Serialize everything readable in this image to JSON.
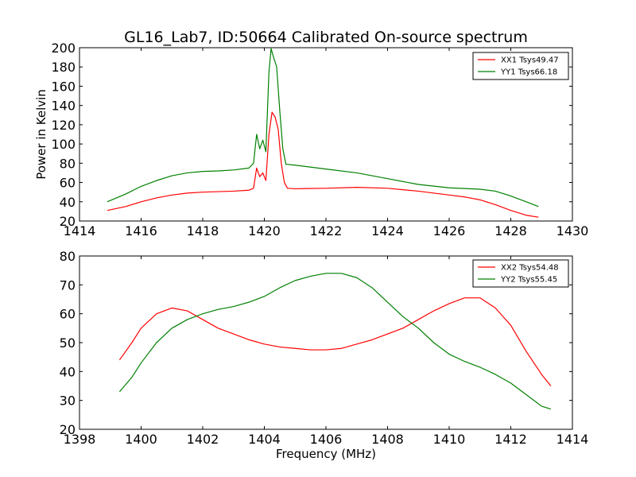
{
  "chart_data": [
    {
      "type": "line",
      "title": "GL16_Lab7, ID:50664 Calibrated On-source spectrum",
      "xlabel": "",
      "ylabel": "Power in Kelvin",
      "xlim": [
        1414,
        1430
      ],
      "ylim": [
        20,
        200
      ],
      "x_ticks": [
        1414,
        1416,
        1418,
        1420,
        1422,
        1424,
        1426,
        1428,
        1430
      ],
      "y_ticks": [
        20,
        40,
        60,
        80,
        100,
        120,
        140,
        160,
        180,
        200
      ],
      "legend_position": "top-right",
      "grid": false,
      "series": [
        {
          "name": "XX1 Tsys49.47",
          "color": "#ff0000",
          "points": [
            [
              1414.9,
              31
            ],
            [
              1415.5,
              35
            ],
            [
              1416,
              40
            ],
            [
              1416.5,
              44
            ],
            [
              1417,
              47
            ],
            [
              1417.5,
              49
            ],
            [
              1418,
              50
            ],
            [
              1418.5,
              50.5
            ],
            [
              1419,
              51
            ],
            [
              1419.5,
              52
            ],
            [
              1419.65,
              54
            ],
            [
              1419.75,
              75
            ],
            [
              1419.85,
              66
            ],
            [
              1419.95,
              70
            ],
            [
              1420.05,
              62
            ],
            [
              1420.15,
              110
            ],
            [
              1420.25,
              133
            ],
            [
              1420.35,
              128
            ],
            [
              1420.45,
              115
            ],
            [
              1420.55,
              80
            ],
            [
              1420.65,
              60
            ],
            [
              1420.75,
              54
            ],
            [
              1421,
              53.5
            ],
            [
              1422,
              54
            ],
            [
              1423,
              55
            ],
            [
              1424,
              54
            ],
            [
              1425,
              51
            ],
            [
              1426,
              47
            ],
            [
              1426.5,
              45
            ],
            [
              1427,
              42
            ],
            [
              1427.5,
              37
            ],
            [
              1428,
              31
            ],
            [
              1428.5,
              26
            ],
            [
              1428.9,
              24
            ]
          ]
        },
        {
          "name": "YY1 Tsys66.18",
          "color": "#008000",
          "points": [
            [
              1414.9,
              40
            ],
            [
              1415.5,
              48
            ],
            [
              1416,
              56
            ],
            [
              1416.5,
              62
            ],
            [
              1417,
              67
            ],
            [
              1417.5,
              70
            ],
            [
              1418,
              71.5
            ],
            [
              1418.5,
              72
            ],
            [
              1419,
              73
            ],
            [
              1419.5,
              75
            ],
            [
              1419.65,
              80
            ],
            [
              1419.75,
              110
            ],
            [
              1419.85,
              95
            ],
            [
              1419.95,
              104
            ],
            [
              1420.05,
              92
            ],
            [
              1420.15,
              175
            ],
            [
              1420.22,
              199
            ],
            [
              1420.3,
              190
            ],
            [
              1420.4,
              180
            ],
            [
              1420.5,
              135
            ],
            [
              1420.6,
              95
            ],
            [
              1420.7,
              79
            ],
            [
              1421,
              78
            ],
            [
              1422,
              74
            ],
            [
              1423,
              70
            ],
            [
              1424,
              64
            ],
            [
              1425,
              58
            ],
            [
              1426,
              54.5
            ],
            [
              1427,
              53
            ],
            [
              1427.5,
              51
            ],
            [
              1428,
              46
            ],
            [
              1428.5,
              40
            ],
            [
              1428.9,
              35
            ]
          ]
        }
      ]
    },
    {
      "type": "line",
      "title": "",
      "xlabel": "Frequency (MHz)",
      "ylabel": "",
      "xlim": [
        1398,
        1414
      ],
      "ylim": [
        20,
        80
      ],
      "x_ticks": [
        1398,
        1400,
        1402,
        1404,
        1406,
        1408,
        1410,
        1412,
        1414
      ],
      "y_ticks": [
        20,
        30,
        40,
        50,
        60,
        70,
        80
      ],
      "legend_position": "top-right",
      "grid": false,
      "series": [
        {
          "name": "XX2 Tsys54.48",
          "color": "#ff0000",
          "points": [
            [
              1399.3,
              44
            ],
            [
              1399.7,
              50
            ],
            [
              1400,
              55
            ],
            [
              1400.5,
              60
            ],
            [
              1401,
              62
            ],
            [
              1401.5,
              61
            ],
            [
              1402,
              58
            ],
            [
              1402.5,
              55
            ],
            [
              1403,
              53
            ],
            [
              1403.5,
              51
            ],
            [
              1404,
              49.5
            ],
            [
              1404.5,
              48.5
            ],
            [
              1405,
              48
            ],
            [
              1405.5,
              47.5
            ],
            [
              1406,
              47.5
            ],
            [
              1406.5,
              48
            ],
            [
              1407,
              49.5
            ],
            [
              1407.5,
              51
            ],
            [
              1408,
              53
            ],
            [
              1408.5,
              55
            ],
            [
              1409,
              58
            ],
            [
              1409.5,
              61
            ],
            [
              1410,
              63.5
            ],
            [
              1410.5,
              65.5
            ],
            [
              1411,
              65.5
            ],
            [
              1411.5,
              62
            ],
            [
              1412,
              56
            ],
            [
              1412.5,
              47
            ],
            [
              1413,
              39
            ],
            [
              1413.3,
              35
            ]
          ]
        },
        {
          "name": "YY2 Tsys55.45",
          "color": "#008000",
          "points": [
            [
              1399.3,
              33
            ],
            [
              1399.7,
              38
            ],
            [
              1400,
              43
            ],
            [
              1400.5,
              50
            ],
            [
              1401,
              55
            ],
            [
              1401.5,
              58
            ],
            [
              1402,
              60
            ],
            [
              1402.5,
              61.5
            ],
            [
              1403,
              62.5
            ],
            [
              1403.5,
              64
            ],
            [
              1404,
              66
            ],
            [
              1404.5,
              69
            ],
            [
              1405,
              71.5
            ],
            [
              1405.5,
              73
            ],
            [
              1406,
              74
            ],
            [
              1406.5,
              74
            ],
            [
              1407,
              72.5
            ],
            [
              1407.5,
              69
            ],
            [
              1408,
              64
            ],
            [
              1408.5,
              59
            ],
            [
              1409,
              55
            ],
            [
              1409.5,
              50
            ],
            [
              1410,
              46
            ],
            [
              1410.5,
              43.5
            ],
            [
              1411,
              41.5
            ],
            [
              1411.5,
              39
            ],
            [
              1412,
              36
            ],
            [
              1412.5,
              32
            ],
            [
              1413,
              28
            ],
            [
              1413.3,
              27
            ]
          ]
        }
      ]
    }
  ]
}
